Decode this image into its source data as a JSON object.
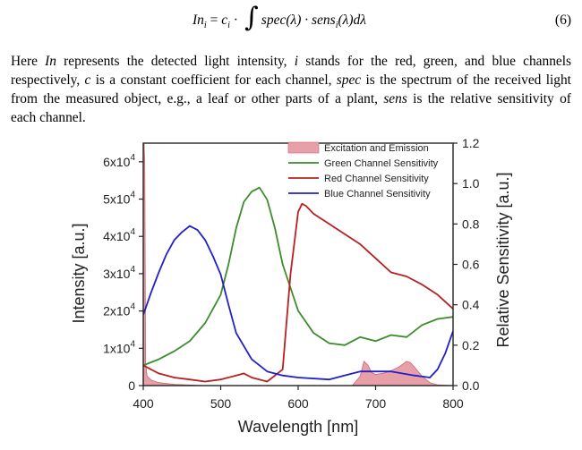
{
  "equation": {
    "lhs": "In",
    "lhs_sub": "i",
    "eq": " = ",
    "coef": "c",
    "coef_sub": "i",
    "dot": " · ",
    "integrand_a": "spec(λ) · sens",
    "integrand_sub": "i",
    "integrand_b": "(λ)dλ",
    "number": "(6)"
  },
  "paragraph": {
    "lines": [
      "Here In represents the detected light intensity, i stands for the red, green, and blue channels",
      "respectively, c is a constant coefficient for each channel, spec is the spectrum of the received light",
      "from the measured object, e.g., a leaf or other parts of a plant, sens is the relative sensitivity of",
      "each channel."
    ]
  },
  "colors": {
    "excitation_fill": "#e8a0a8",
    "excitation_stroke": "#d06070",
    "green": "#3c8c2c",
    "red": "#b82020",
    "blue": "#2020c8",
    "axis": "#222222"
  },
  "chart_data": {
    "type": "line",
    "xlabel": "Wavelength [nm]",
    "ylabel_left": "Intensity [a.u.]",
    "ylabel_right": "Relative Sensitivity [a.u.]",
    "xlim": [
      400,
      800
    ],
    "xticks": [
      "400",
      "500",
      "600",
      "700",
      "800"
    ],
    "ylim_left": [
      0,
      65000
    ],
    "yticks_left": [
      {
        "value": 0,
        "label": "0"
      },
      {
        "value": 10000,
        "label": "1x10"
      },
      {
        "value": 20000,
        "label": "2x10"
      },
      {
        "value": 30000,
        "label": "3x10"
      },
      {
        "value": 40000,
        "label": "4x10"
      },
      {
        "value": 50000,
        "label": "5x10"
      },
      {
        "value": 60000,
        "label": "6x10"
      }
    ],
    "yticks_left_exponent": "4",
    "ylim_right": [
      0,
      1.2
    ],
    "yticks_right": [
      "0.0",
      "0.2",
      "0.4",
      "0.6",
      "0.8",
      "1.0",
      "1.2"
    ],
    "legend_position": "top-right",
    "legend": [
      {
        "name": "Excitation and Emission",
        "kind": "area",
        "color": "#e8a0a8"
      },
      {
        "name": "Green Channel Sensitivity",
        "kind": "line",
        "color": "#3c8c2c"
      },
      {
        "name": "Red   Channel Sensitivity",
        "kind": "line",
        "color": "#b82020"
      },
      {
        "name": "Blue   Channel Sensitivity",
        "kind": "line",
        "color": "#2020c8"
      }
    ],
    "series": [
      {
        "name": "Excitation and Emission",
        "axis": "left",
        "x": [
          400,
          401,
          402,
          403,
          405,
          410,
          420,
          440,
          480,
          600,
          670,
          680,
          685,
          690,
          695,
          700,
          710,
          720,
          730,
          740,
          745,
          750,
          760,
          770,
          780,
          800
        ],
        "y": [
          65000,
          65000,
          60000,
          6000,
          2500,
          1500,
          800,
          300,
          0,
          0,
          0,
          2500,
          6500,
          5500,
          3500,
          3000,
          3300,
          4000,
          5000,
          6500,
          6200,
          5000,
          2500,
          800,
          200,
          0
        ]
      },
      {
        "name": "Green Channel Sensitivity",
        "axis": "right",
        "x": [
          400,
          420,
          440,
          460,
          480,
          500,
          510,
          520,
          530,
          540,
          550,
          560,
          570,
          580,
          600,
          620,
          640,
          660,
          670,
          680,
          700,
          720,
          740,
          760,
          780,
          800
        ],
        "y": [
          0.1,
          0.13,
          0.17,
          0.22,
          0.31,
          0.45,
          0.6,
          0.78,
          0.91,
          0.96,
          0.98,
          0.92,
          0.78,
          0.6,
          0.37,
          0.26,
          0.21,
          0.2,
          0.22,
          0.24,
          0.22,
          0.25,
          0.24,
          0.3,
          0.33,
          0.34
        ]
      },
      {
        "name": "Red Channel Sensitivity",
        "axis": "right",
        "x": [
          400,
          420,
          440,
          460,
          480,
          500,
          520,
          530,
          540,
          560,
          580,
          590,
          600,
          605,
          610,
          620,
          640,
          660,
          680,
          700,
          720,
          740,
          760,
          780,
          800
        ],
        "y": [
          0.1,
          0.06,
          0.04,
          0.03,
          0.02,
          0.03,
          0.05,
          0.06,
          0.04,
          0.02,
          0.08,
          0.55,
          0.86,
          0.9,
          0.89,
          0.85,
          0.8,
          0.75,
          0.7,
          0.63,
          0.56,
          0.54,
          0.5,
          0.45,
          0.38
        ]
      },
      {
        "name": "Blue Channel Sensitivity",
        "axis": "right",
        "x": [
          400,
          410,
          420,
          430,
          440,
          450,
          460,
          470,
          480,
          490,
          500,
          510,
          520,
          540,
          560,
          580,
          600,
          640,
          680,
          720,
          750,
          770,
          780,
          790,
          800
        ],
        "y": [
          0.35,
          0.46,
          0.56,
          0.65,
          0.72,
          0.76,
          0.79,
          0.77,
          0.72,
          0.64,
          0.55,
          0.4,
          0.26,
          0.13,
          0.07,
          0.05,
          0.04,
          0.03,
          0.07,
          0.07,
          0.05,
          0.04,
          0.08,
          0.16,
          0.27
        ]
      }
    ]
  }
}
